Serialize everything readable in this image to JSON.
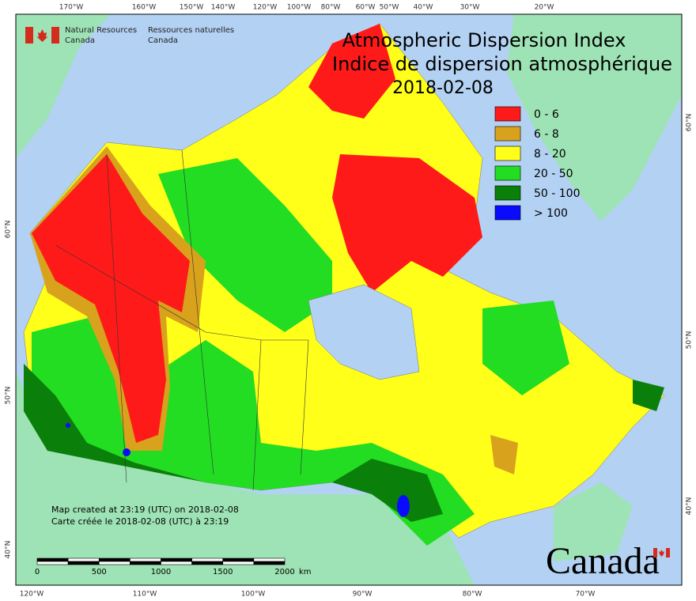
{
  "logo": {
    "en": [
      "Natural Resources",
      "Canada"
    ],
    "fr": [
      "Ressources naturelles",
      "Canada"
    ]
  },
  "title": {
    "en": "Atmospheric Dispersion Index",
    "fr": "Indice de dispersion atmosphérique",
    "date": "2018-02-08"
  },
  "legend": [
    {
      "label": "0 - 6",
      "color": "#ff1a1a"
    },
    {
      "label": "6 - 8",
      "color": "#d9a21c"
    },
    {
      "label": "8 - 20",
      "color": "#ffff1a"
    },
    {
      "label": "20 - 50",
      "color": "#22dd22"
    },
    {
      "label": "50 - 100",
      "color": "#0a7f0a"
    },
    {
      "label": "> 100",
      "color": "#0a0aff"
    }
  ],
  "graticule": {
    "top": [
      "170°W",
      "160°W",
      "150°W",
      "140°W",
      "120°W",
      "100°W",
      "80°W",
      "60°W",
      "50°W",
      "40°W",
      "30°W",
      "20°W"
    ],
    "bottom": [
      "120°W",
      "110°W",
      "100°W",
      "90°W",
      "80°W",
      "70°W"
    ],
    "left": [
      "60°N",
      "50°N",
      "40°N"
    ],
    "right": [
      "60°N",
      "50°N",
      "40°N"
    ]
  },
  "credit": [
    "Map created at 23:19 (UTC) on 2018-02-08",
    "Carte créée le 2018-02-08 (UTC) à 23:19"
  ],
  "scale_bar": {
    "labels": [
      "0",
      "500",
      "1000",
      "1500",
      "2000"
    ],
    "unit": "km"
  },
  "wordmark": "Canada"
}
